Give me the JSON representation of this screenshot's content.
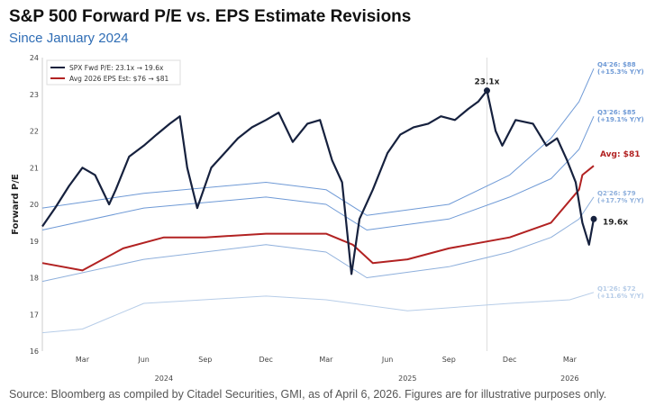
{
  "chart_data": {
    "type": "line",
    "title": "S&P 500 Forward P/E vs. EPS Estimate Revisions",
    "subtitle": "Since January 2024",
    "ylabel": "Forward P/E",
    "xlabel": "",
    "ylim": [
      16,
      24
    ],
    "yticks": [
      16,
      17,
      18,
      19,
      20,
      21,
      22,
      23,
      24
    ],
    "xlim": [
      "2024-01-01",
      "2026-04-10"
    ],
    "xticks": [
      {
        "date": "2024-03-01",
        "label": "Mar"
      },
      {
        "date": "2024-06-01",
        "label": "Jun"
      },
      {
        "date": "2024-09-01",
        "label": "Sep"
      },
      {
        "date": "2024-12-01",
        "label": "Dec"
      },
      {
        "date": "2025-03-01",
        "label": "Mar"
      },
      {
        "date": "2025-06-01",
        "label": "Jun"
      },
      {
        "date": "2025-09-01",
        "label": "Sep"
      },
      {
        "date": "2025-12-01",
        "label": "Dec"
      },
      {
        "date": "2026-03-01",
        "label": "Mar"
      }
    ],
    "year_labels": [
      {
        "date": "2024-07-01",
        "label": "2024"
      },
      {
        "date": "2025-07-01",
        "label": "2025"
      },
      {
        "date": "2026-03-01",
        "label": "2026"
      }
    ],
    "grid": false,
    "legend": {
      "placement": "top-left",
      "entries": [
        "SPX Fwd P/E: 23.1x → 19.6x",
        "Avg 2026 EPS Est: $76 → $81"
      ]
    },
    "vline_date": "2025-10-28",
    "annotations": {
      "peak": "23.1x",
      "last": "19.6x",
      "avg": "Avg: $81"
    },
    "series": [
      {
        "name": "SPX Fwd P/E: 23.1x → 19.6x",
        "color": "#16213e",
        "width": 2.2,
        "x": [
          "2024-01-01",
          "2024-01-20",
          "2024-02-10",
          "2024-03-01",
          "2024-03-20",
          "2024-04-10",
          "2024-04-20",
          "2024-05-10",
          "2024-06-01",
          "2024-06-20",
          "2024-07-10",
          "2024-07-25",
          "2024-08-05",
          "2024-08-20",
          "2024-09-10",
          "2024-09-30",
          "2024-10-20",
          "2024-11-10",
          "2024-12-01",
          "2024-12-20",
          "2025-01-10",
          "2025-02-01",
          "2025-02-20",
          "2025-03-10",
          "2025-03-25",
          "2025-04-08",
          "2025-04-20",
          "2025-05-10",
          "2025-06-01",
          "2025-06-20",
          "2025-07-10",
          "2025-08-01",
          "2025-08-20",
          "2025-09-10",
          "2025-09-30",
          "2025-10-15",
          "2025-10-28",
          "2025-11-10",
          "2025-11-20",
          "2025-12-10",
          "2026-01-05",
          "2026-01-25",
          "2026-02-10",
          "2026-02-25",
          "2026-03-10",
          "2026-03-20",
          "2026-03-30",
          "2026-04-06"
        ],
        "values": [
          19.4,
          19.9,
          20.5,
          21.0,
          20.8,
          20.0,
          20.4,
          21.3,
          21.6,
          21.9,
          22.2,
          22.4,
          21.0,
          19.9,
          21.0,
          21.4,
          21.8,
          22.1,
          22.3,
          22.5,
          21.7,
          22.2,
          22.3,
          21.2,
          20.6,
          18.1,
          19.6,
          20.4,
          21.4,
          21.9,
          22.1,
          22.2,
          22.4,
          22.3,
          22.6,
          22.8,
          23.1,
          22.0,
          21.6,
          22.3,
          22.2,
          21.6,
          21.8,
          21.2,
          20.6,
          19.5,
          18.9,
          19.6
        ]
      },
      {
        "name": "Avg 2026 EPS Est: $76 → $81",
        "color": "#b22222",
        "width": 2,
        "x": [
          "2024-01-01",
          "2024-03-01",
          "2024-05-01",
          "2024-07-01",
          "2024-09-01",
          "2024-12-01",
          "2025-03-01",
          "2025-04-10",
          "2025-05-10",
          "2025-07-01",
          "2025-09-01",
          "2025-12-01",
          "2026-02-01",
          "2026-03-15",
          "2026-03-20",
          "2026-04-06"
        ],
        "values": [
          18.4,
          18.2,
          18.8,
          19.1,
          19.1,
          19.2,
          19.2,
          18.9,
          18.4,
          18.5,
          18.8,
          19.1,
          19.5,
          20.4,
          20.8,
          21.05
        ]
      },
      {
        "label": "Q4'26: $88",
        "sublabel": "(+15.3% Y/Y)",
        "color": "#6f9ad6",
        "width": 1,
        "x": [
          "2024-01-01",
          "2024-06-01",
          "2024-12-01",
          "2025-03-01",
          "2025-05-01",
          "2025-09-01",
          "2025-12-01",
          "2026-02-01",
          "2026-03-15",
          "2026-04-06"
        ],
        "values": [
          19.9,
          20.3,
          20.6,
          20.4,
          19.7,
          20.0,
          20.8,
          21.8,
          22.8,
          23.7
        ]
      },
      {
        "label": "Q3'26: $85",
        "sublabel": "(+19.1% Y/Y)",
        "color": "#6f9ad6",
        "width": 1,
        "x": [
          "2024-01-01",
          "2024-06-01",
          "2024-12-01",
          "2025-03-01",
          "2025-05-01",
          "2025-09-01",
          "2025-12-01",
          "2026-02-01",
          "2026-03-15",
          "2026-04-06"
        ],
        "values": [
          19.3,
          19.9,
          20.2,
          20.0,
          19.3,
          19.6,
          20.2,
          20.7,
          21.5,
          22.4
        ]
      },
      {
        "label": "Q2'26: $79",
        "sublabel": "(+17.7% Y/Y)",
        "color": "#8fb0dc",
        "width": 1,
        "x": [
          "2024-01-01",
          "2024-06-01",
          "2024-12-01",
          "2025-03-01",
          "2025-05-01",
          "2025-09-01",
          "2025-12-01",
          "2026-02-01",
          "2026-03-15",
          "2026-04-06"
        ],
        "values": [
          17.9,
          18.5,
          18.9,
          18.7,
          18.0,
          18.3,
          18.7,
          19.1,
          19.6,
          20.2
        ]
      },
      {
        "label": "Q1'26: $72",
        "sublabel": "(+11.6% Y/Y)",
        "color": "#b7cde8",
        "width": 1,
        "x": [
          "2024-01-01",
          "2024-03-01",
          "2024-06-01",
          "2024-12-01",
          "2025-03-01",
          "2025-07-01",
          "2025-12-01",
          "2026-03-01",
          "2026-04-06"
        ],
        "values": [
          16.5,
          16.6,
          17.3,
          17.5,
          17.4,
          17.1,
          17.3,
          17.4,
          17.6
        ]
      }
    ]
  },
  "footer": {
    "source": "Source: Bloomberg as compiled by Citadel Securities, GMI, as of April 6, 2026. Figures are for illustrative purposes only."
  }
}
